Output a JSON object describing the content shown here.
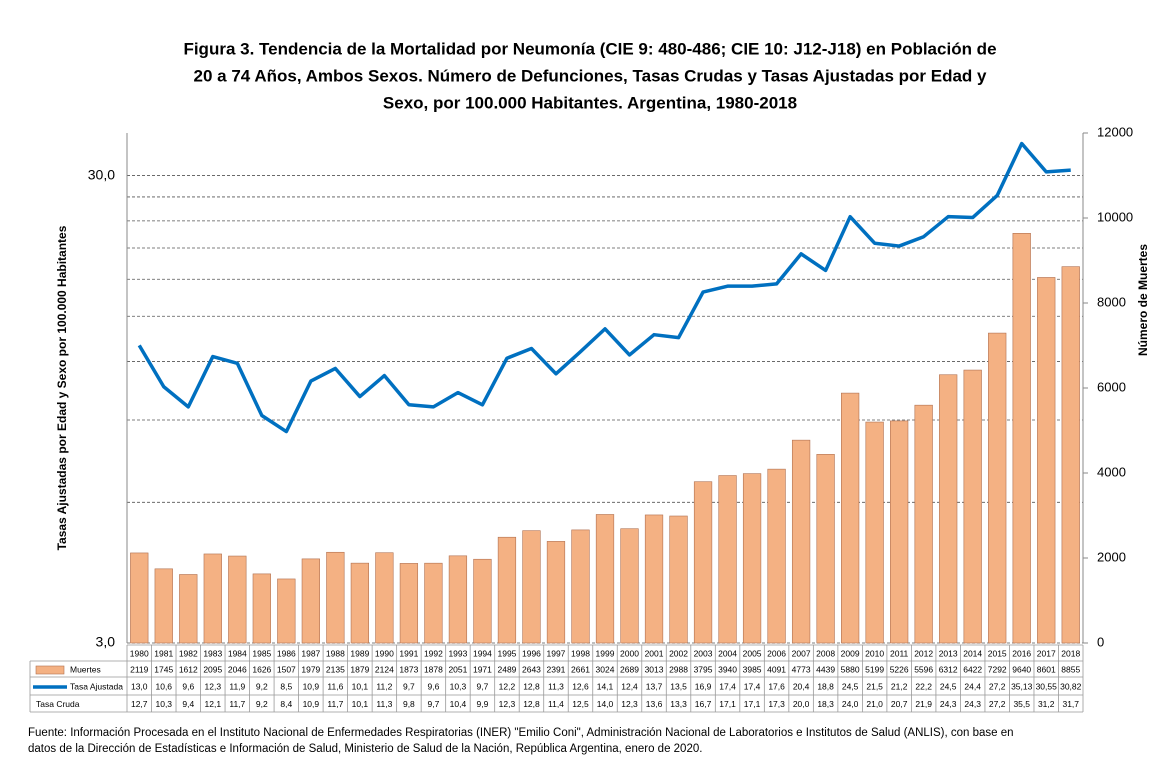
{
  "chart_data": {
    "type": "bar-line-table",
    "title": [
      "Figura 3. Tendencia de la Mortalidad por Neumonía (CIE 9: 480-486; CIE 10: J12-J18) en Población de",
      "20 a 74 Años, Ambos Sexos. Número de Defunciones, Tasas Crudas y Tasas Ajustadas por Edad y",
      "Sexo, por 100.000 Habitantes. Argentina, 1980-2018"
    ],
    "y_label": "Tasas Ajustadas por Edad y Sexo por 100.000 Habitantes",
    "y2_label": "Número de Muertes",
    "categories": [
      "1980",
      "1981",
      "1982",
      "1983",
      "1984",
      "1985",
      "1986",
      "1987",
      "1988",
      "1989",
      "1990",
      "1991",
      "1992",
      "1993",
      "1994",
      "1995",
      "1996",
      "1997",
      "1998",
      "1999",
      "2000",
      "2001",
      "2002",
      "2003",
      "2004",
      "2005",
      "2006",
      "2007",
      "2008",
      "2009",
      "2010",
      "2011",
      "2012",
      "2013",
      "2014",
      "2015",
      "2016",
      "2017",
      "2018"
    ],
    "y_log": true,
    "ylim": [
      3,
      37
    ],
    "yticks": [
      {
        "value": 3,
        "label": "3,0"
      },
      {
        "value": 30,
        "label": "30,0"
      }
    ],
    "y_minor_grid": [
      6,
      9,
      12,
      15,
      18,
      21,
      24,
      27
    ],
    "y2lim": [
      0,
      12000
    ],
    "y2ticks": [
      0,
      2000,
      4000,
      6000,
      8000,
      10000,
      12000
    ],
    "series": [
      {
        "name": "Muertes",
        "kind": "bar",
        "axis": "y2",
        "color": "#f4b183",
        "values": [
          2119,
          1745,
          1612,
          2095,
          2046,
          1626,
          1507,
          1979,
          2135,
          1879,
          2124,
          1873,
          1878,
          2051,
          1971,
          2489,
          2643,
          2391,
          2661,
          3024,
          2689,
          3013,
          2988,
          3795,
          3940,
          3985,
          4091,
          4773,
          4439,
          5880,
          5199,
          5226,
          5596,
          6312,
          6422,
          7292,
          9640,
          8601,
          8855
        ]
      },
      {
        "name": "Tasa Ajustada",
        "kind": "line",
        "axis": "y",
        "color": "#0070c0",
        "values": [
          13.0,
          10.6,
          9.6,
          12.3,
          11.9,
          9.2,
          8.5,
          10.9,
          11.6,
          10.1,
          11.2,
          9.7,
          9.6,
          10.3,
          9.7,
          12.2,
          12.8,
          11.3,
          12.6,
          14.1,
          12.4,
          13.7,
          13.5,
          16.9,
          17.4,
          17.4,
          17.6,
          20.4,
          18.8,
          24.5,
          21.5,
          21.2,
          22.2,
          24.5,
          24.4,
          27.2,
          35.13,
          30.55,
          30.82
        ],
        "value_labels": [
          "13,0",
          "10,6",
          "9,6",
          "12,3",
          "11,9",
          "9,2",
          "8,5",
          "10,9",
          "11,6",
          "10,1",
          "11,2",
          "9,7",
          "9,6",
          "10,3",
          "9,7",
          "12,2",
          "12,8",
          "11,3",
          "12,6",
          "14,1",
          "12,4",
          "13,7",
          "13,5",
          "16,9",
          "17,4",
          "17,4",
          "17,6",
          "20,4",
          "18,8",
          "24,5",
          "21,5",
          "21,2",
          "22,2",
          "24,5",
          "24,4",
          "27,2",
          "35,13",
          "30,55",
          "30,82"
        ]
      },
      {
        "name": "Tasa Cruda",
        "kind": "none",
        "values": [
          12.7,
          10.3,
          9.4,
          12.1,
          11.7,
          9.2,
          8.4,
          10.9,
          11.7,
          10.1,
          11.3,
          9.8,
          9.7,
          10.4,
          9.9,
          12.3,
          12.8,
          11.4,
          12.5,
          14.0,
          12.3,
          13.6,
          13.3,
          16.7,
          17.1,
          17.1,
          17.3,
          20.0,
          18.3,
          24.0,
          21.0,
          20.7,
          21.9,
          24.3,
          24.3,
          27.2,
          35.5,
          31.2,
          31.7
        ],
        "value_labels": [
          "12,7",
          "10,3",
          "9,4",
          "12,1",
          "11,7",
          "9,2",
          "8,4",
          "10,9",
          "11,7",
          "10,1",
          "11,3",
          "9,8",
          "9,7",
          "10,4",
          "9,9",
          "12,3",
          "12,8",
          "11,4",
          "12,5",
          "14,0",
          "12,3",
          "13,6",
          "13,3",
          "16,7",
          "17,1",
          "17,1",
          "17,3",
          "20,0",
          "18,3",
          "24,0",
          "21,0",
          "20,7",
          "21,9",
          "24,3",
          "24,3",
          "27,2",
          "35,5",
          "31,2",
          "31,7"
        ]
      }
    ],
    "source": [
      "Fuente: Información Procesada en el Instituto Nacional de Enfermedades Respiratorias (INER) \"Emilio Coni\", Administración Nacional de Laboratorios e Institutos de Salud (ANLIS), con base en",
      "datos de la Dirección de Estadísticas e Información de Salud, Ministerio de Salud de la Nación, República Argentina, enero de 2020."
    ]
  }
}
